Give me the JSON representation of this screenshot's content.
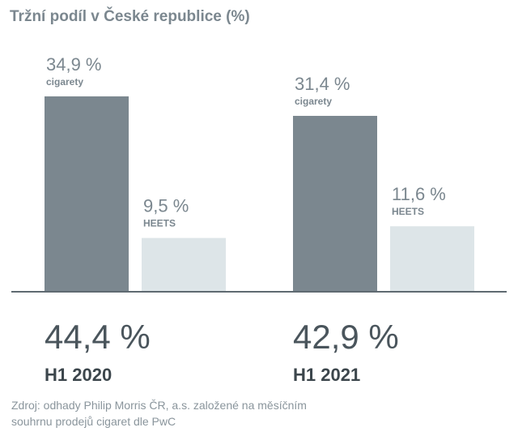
{
  "chart_data": {
    "type": "bar",
    "title": "Tržní podíl v České republice (%)",
    "categories": [
      "H1 2020",
      "H1 2021"
    ],
    "series": [
      {
        "name": "cigarety",
        "color": "#7b878f",
        "values": [
          34.9,
          31.4
        ],
        "value_labels": [
          "34,9 %",
          "31,4 %"
        ]
      },
      {
        "name": "HEETS",
        "color": "#dde5e8",
        "values": [
          9.5,
          11.6
        ],
        "value_labels": [
          "9,5 %",
          "11,6 %"
        ]
      }
    ],
    "totals": [
      44.4,
      42.9
    ],
    "total_labels": [
      "44,4 %",
      "42,9 %"
    ],
    "source": [
      "Zdroj: odhady Philip Morris ČR, a.s. založené na měsíčním",
      "souhrnu prodejů cigaret dle PwC"
    ]
  }
}
